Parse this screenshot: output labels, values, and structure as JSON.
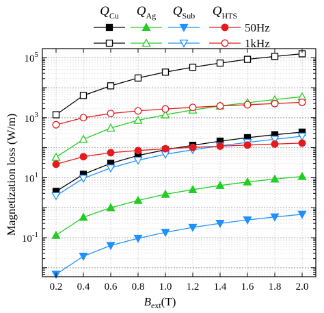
{
  "chart_data": {
    "type": "line",
    "x": [
      0.2,
      0.4,
      0.6,
      0.8,
      1.0,
      1.2,
      1.4,
      1.6,
      1.8,
      2.0
    ],
    "xlabel_main": "B",
    "xlabel_sub": "ext",
    "xlabel_unit": "(T)",
    "ylabel": "Magnetization loss (W/m)",
    "xlim": [
      0.1,
      2.1
    ],
    "ylim": [
      0.005,
      200000
    ],
    "yscale": "log",
    "xticks": [
      "0.2",
      "0.4",
      "0.6",
      "0.8",
      "1.0",
      "1.2",
      "1.4",
      "1.6",
      "1.8",
      "2.0"
    ],
    "yticks": [
      {
        "value": 0.1,
        "base": "10",
        "exp": "-1"
      },
      {
        "value": 10,
        "base": "10",
        "exp": "1"
      },
      {
        "value": 1000,
        "base": "10",
        "exp": "3"
      },
      {
        "value": 100000,
        "base": "10",
        "exp": "5"
      }
    ],
    "grid": true,
    "legend": {
      "placement": "top",
      "columns": [
        {
          "main": "Q",
          "sub": "Cu",
          "color": "#000000",
          "marker": "square"
        },
        {
          "main": "Q",
          "sub": "Ag",
          "color": "#22cc22",
          "marker": "triangle-up"
        },
        {
          "main": "Q",
          "sub": "Sub",
          "color": "#1e90ff",
          "marker": "triangle-down"
        },
        {
          "main": "Q",
          "sub": "HTS",
          "color": "#e41a1c",
          "marker": "circle"
        }
      ],
      "rows": [
        {
          "label": "50Hz",
          "fill": "filled"
        },
        {
          "label": "1kHz",
          "fill": "open"
        }
      ]
    },
    "series": [
      {
        "component": "Cu",
        "frequency": "1kHz",
        "color": "#000000",
        "marker": "square",
        "fill": "open",
        "values": [
          1250,
          5500,
          11500,
          21000,
          33000,
          48000,
          66000,
          88000,
          110000,
          135000
        ]
      },
      {
        "component": "Ag",
        "frequency": "1kHz",
        "color": "#22cc22",
        "marker": "triangle-up",
        "fill": "open",
        "values": [
          48,
          190,
          450,
          820,
          1250,
          1800,
          2450,
          3150,
          4000,
          5000
        ]
      },
      {
        "component": "HTS",
        "frequency": "1kHz",
        "color": "#e41a1c",
        "marker": "circle",
        "fill": "open",
        "values": [
          580,
          1000,
          1380,
          1680,
          1950,
          2200,
          2450,
          2700,
          2950,
          3250
        ]
      },
      {
        "component": "Cu",
        "frequency": "50Hz",
        "color": "#000000",
        "marker": "square",
        "fill": "filled",
        "values": [
          3.5,
          13,
          30,
          55,
          85,
          120,
          165,
          215,
          270,
          330
        ]
      },
      {
        "component": "Sub",
        "frequency": "1kHz",
        "color": "#1e90ff",
        "marker": "triangle-down",
        "fill": "open",
        "values": [
          2.5,
          9.5,
          21,
          38,
          60,
          85,
          115,
          150,
          190,
          240
        ]
      },
      {
        "component": "HTS",
        "frequency": "50Hz",
        "color": "#e41a1c",
        "marker": "circle",
        "fill": "filled",
        "values": [
          28,
          50,
          68,
          80,
          92,
          102,
          112,
          122,
          132,
          142
        ]
      },
      {
        "component": "Ag",
        "frequency": "50Hz",
        "color": "#22cc22",
        "marker": "triangle-up",
        "fill": "filled",
        "values": [
          0.12,
          0.48,
          1.0,
          1.75,
          2.8,
          4.0,
          5.5,
          7.2,
          9.0,
          11
        ]
      },
      {
        "component": "Sub",
        "frequency": "50Hz",
        "color": "#1e90ff",
        "marker": "triangle-down",
        "fill": "filled",
        "values": [
          0.006,
          0.024,
          0.055,
          0.095,
          0.15,
          0.22,
          0.3,
          0.39,
          0.49,
          0.6
        ]
      }
    ]
  }
}
